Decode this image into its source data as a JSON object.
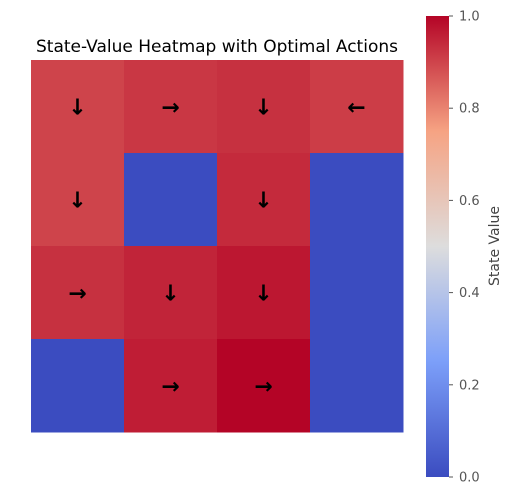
{
  "chart_data": {
    "type": "heatmap",
    "title": "State-Value Heatmap with Optimal Actions",
    "rows": 4,
    "cols": 4,
    "values": [
      [
        0.9,
        0.92,
        0.93,
        0.91
      ],
      [
        0.9,
        0.0,
        0.94,
        0.0
      ],
      [
        0.93,
        0.95,
        0.97,
        0.0
      ],
      [
        0.0,
        0.96,
        1.0,
        0.0
      ]
    ],
    "actions": [
      [
        "↓",
        "→",
        "↓",
        "←"
      ],
      [
        "↓",
        "",
        "↓",
        ""
      ],
      [
        "→",
        "↓",
        "↓",
        ""
      ],
      [
        "",
        "→",
        "→",
        ""
      ]
    ],
    "colormap": "coolwarm",
    "colorbar": {
      "label": "State Value",
      "range": [
        0.0,
        1.0
      ],
      "ticks": [
        0.0,
        0.2,
        0.4,
        0.6,
        0.8,
        1.0
      ],
      "tick_labels": [
        "0.0",
        "0.2",
        "0.4",
        "0.6",
        "0.8",
        "1.0"
      ]
    },
    "grid": false
  }
}
